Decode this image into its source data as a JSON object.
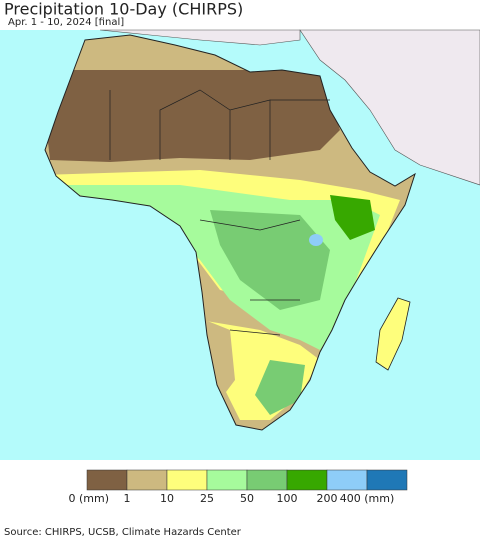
{
  "header": {
    "title": "Precipitation 10-Day (CHIRPS)",
    "subtitle": "Apr. 1 - 10, 2024 [final]"
  },
  "legend": {
    "items": [
      {
        "label": "0 (mm)",
        "color": "#7f6143"
      },
      {
        "label": "1",
        "color": "#cdb980"
      },
      {
        "label": "10",
        "color": "#fefe7c"
      },
      {
        "label": "25",
        "color": "#a6fb9c"
      },
      {
        "label": "50",
        "color": "#78cc73"
      },
      {
        "label": "100",
        "color": "#37a800"
      },
      {
        "label": "200",
        "color": "#8ecdf8"
      },
      {
        "label": "400 (mm)",
        "color": "#1f78b6"
      }
    ]
  },
  "footer": {
    "source": "Source: CHIRPS, UCSB, Climate Hazards Center"
  }
}
